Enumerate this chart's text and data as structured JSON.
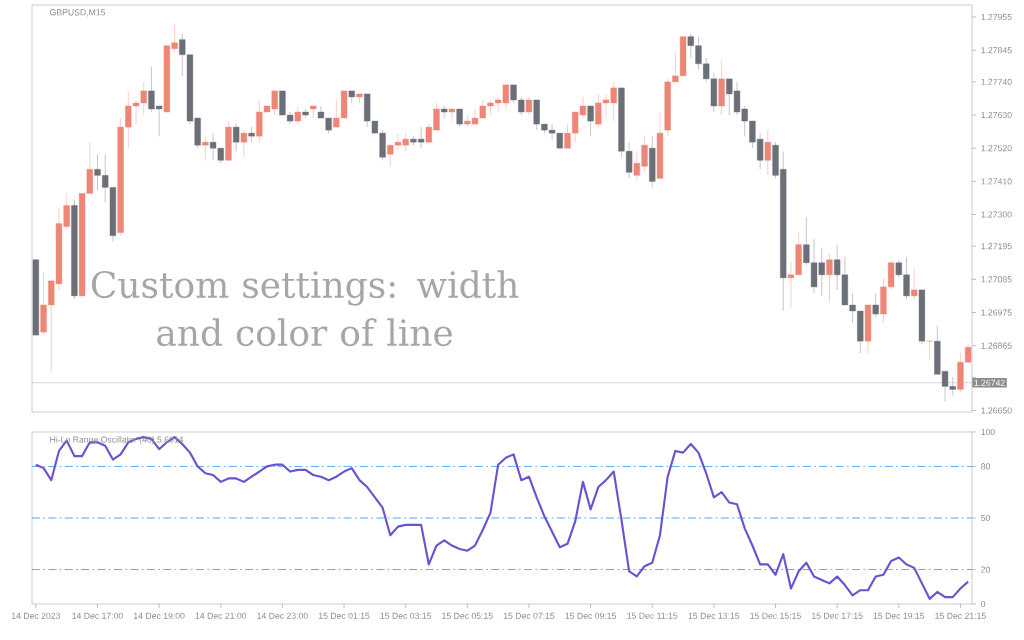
{
  "chart_data": [
    {
      "type": "candlestick",
      "title": "GBPUSD,M15",
      "annotations": [
        "Custom settings: width and color of line"
      ],
      "tick_labels": "y",
      "categories": [
        null,
        null,
        null,
        null,
        null,
        null,
        null,
        null,
        null,
        null,
        null,
        null,
        null,
        null,
        null,
        null,
        null,
        null,
        null,
        null,
        null,
        null,
        null,
        null,
        null,
        null,
        null,
        null,
        null,
        null,
        null,
        null,
        null,
        null,
        null,
        null,
        null,
        null,
        null,
        null,
        null,
        null,
        null,
        null,
        null,
        null,
        null,
        null,
        null,
        null,
        null,
        null,
        null,
        null,
        null,
        null,
        null,
        null,
        null,
        null,
        null,
        null,
        null,
        null,
        null,
        null,
        null,
        null,
        null,
        null,
        null,
        null,
        null,
        null,
        null,
        null,
        null,
        null,
        null,
        null,
        null,
        null,
        null,
        null,
        null,
        null,
        null,
        null,
        null,
        null,
        null,
        null,
        null,
        null,
        null,
        null,
        null,
        null,
        null,
        null,
        null,
        null,
        null,
        null,
        null,
        null,
        null,
        null,
        null,
        null,
        null,
        null,
        null,
        null,
        null,
        null,
        null,
        null,
        null,
        null,
        null,
        null
      ],
      "ohlc": [
        [
          1.2715,
          1.2715,
          1.269,
          1.269
        ],
        [
          1.2691,
          1.2711,
          1.269,
          1.27
        ],
        [
          1.27,
          1.2708,
          1.2678,
          1.2708
        ],
        [
          1.2707,
          1.2732,
          1.2705,
          1.2727
        ],
        [
          1.2726,
          1.2737,
          1.2725,
          1.2733
        ],
        [
          1.2733,
          1.2735,
          1.2702,
          1.2703
        ],
        [
          1.2703,
          1.2737,
          1.2703,
          1.2737
        ],
        [
          1.2737,
          1.2754,
          1.2737,
          1.2745
        ],
        [
          1.2745,
          1.275,
          1.2738,
          1.2743
        ],
        [
          1.2743,
          1.275,
          1.2734,
          1.2739
        ],
        [
          1.2739,
          1.2739,
          1.2721,
          1.2723
        ],
        [
          1.2724,
          1.2762,
          1.2723,
          1.2759
        ],
        [
          1.2759,
          1.2771,
          1.2752,
          1.2766
        ],
        [
          1.2766,
          1.2768,
          1.276,
          1.2767
        ],
        [
          1.2767,
          1.2774,
          1.2763,
          1.2771
        ],
        [
          1.2771,
          1.2779,
          1.2764,
          1.2765
        ],
        [
          1.2766,
          1.2766,
          1.2756,
          1.2765
        ],
        [
          1.2764,
          1.2786,
          1.2764,
          1.2786
        ],
        [
          1.2785,
          1.2793,
          1.2784,
          1.2787
        ],
        [
          1.2788,
          1.279,
          1.2776,
          1.2783
        ],
        [
          1.2783,
          1.2783,
          1.276,
          1.2761
        ],
        [
          1.2762,
          1.2762,
          1.2752,
          1.2753
        ],
        [
          1.2753,
          1.2756,
          1.2748,
          1.2754
        ],
        [
          1.2754,
          1.2757,
          1.2748,
          1.2752
        ],
        [
          1.2752,
          1.2752,
          1.2747,
          1.2748
        ],
        [
          1.2748,
          1.2761,
          1.2748,
          1.2759
        ],
        [
          1.2759,
          1.276,
          1.2751,
          1.2754
        ],
        [
          1.2754,
          1.2758,
          1.2749,
          1.2757
        ],
        [
          1.2757,
          1.2759,
          1.2754,
          1.2756
        ],
        [
          1.2756,
          1.2768,
          1.2754,
          1.2764
        ],
        [
          1.2764,
          1.2766,
          1.2764,
          1.2766
        ],
        [
          1.2765,
          1.2771,
          1.2763,
          1.2771
        ],
        [
          1.2771,
          1.2771,
          1.2763,
          1.2763
        ],
        [
          1.2763,
          1.2764,
          1.276,
          1.2761
        ],
        [
          1.2761,
          1.2766,
          1.276,
          1.2764
        ],
        [
          1.2764,
          1.2765,
          1.2762,
          1.2763
        ],
        [
          1.2765,
          1.2766,
          1.2762,
          1.2766
        ],
        [
          1.2764,
          1.2766,
          1.2762,
          1.2762
        ],
        [
          1.2762,
          1.2762,
          1.2757,
          1.2758
        ],
        [
          1.2759,
          1.2768,
          1.2759,
          1.2762
        ],
        [
          1.2762,
          1.2771,
          1.2762,
          1.2771
        ],
        [
          1.2771,
          1.2771,
          1.2767,
          1.2769
        ],
        [
          1.2769,
          1.277,
          1.2767,
          1.277
        ],
        [
          1.277,
          1.277,
          1.2759,
          1.2761
        ],
        [
          1.2761,
          1.2761,
          1.2757,
          1.2757
        ],
        [
          1.2757,
          1.2758,
          1.2748,
          1.2749
        ],
        [
          1.275,
          1.2753,
          1.2746,
          1.2753
        ],
        [
          1.2753,
          1.2757,
          1.2751,
          1.2754
        ],
        [
          1.2753,
          1.2757,
          1.2751,
          1.2755
        ],
        [
          1.2755,
          1.2756,
          1.2753,
          1.2754
        ],
        [
          1.2755,
          1.2759,
          1.2752,
          1.2754
        ],
        [
          1.2754,
          1.276,
          1.2754,
          1.2759
        ],
        [
          1.2758,
          1.2767,
          1.2758,
          1.2765
        ],
        [
          1.2765,
          1.2766,
          1.2762,
          1.2764
        ],
        [
          1.2764,
          1.2765,
          1.2761,
          1.2765
        ],
        [
          1.2765,
          1.2765,
          1.2759,
          1.276
        ],
        [
          1.276,
          1.2763,
          1.2759,
          1.2761
        ],
        [
          1.276,
          1.2765,
          1.276,
          1.2762
        ],
        [
          1.2762,
          1.2768,
          1.2762,
          1.2766
        ],
        [
          1.2766,
          1.2768,
          1.2763,
          1.2767
        ],
        [
          1.2767,
          1.2769,
          1.2764,
          1.2768
        ],
        [
          1.2767,
          1.2773,
          1.2765,
          1.2773
        ],
        [
          1.2773,
          1.2773,
          1.2767,
          1.2768
        ],
        [
          1.2768,
          1.2769,
          1.2763,
          1.2764
        ],
        [
          1.2764,
          1.2769,
          1.2763,
          1.2768
        ],
        [
          1.2768,
          1.2768,
          1.2758,
          1.276
        ],
        [
          1.276,
          1.276,
          1.2757,
          1.2758
        ],
        [
          1.2758,
          1.276,
          1.2755,
          1.2757
        ],
        [
          1.2757,
          1.2757,
          1.2752,
          1.2752
        ],
        [
          1.2752,
          1.276,
          1.2752,
          1.2757
        ],
        [
          1.2757,
          1.2764,
          1.2754,
          1.2764
        ],
        [
          1.2763,
          1.2769,
          1.2762,
          1.2766
        ],
        [
          1.2766,
          1.2766,
          1.2756,
          1.2761
        ],
        [
          1.276,
          1.277,
          1.2759,
          1.2767
        ],
        [
          1.2767,
          1.277,
          1.2762,
          1.2768
        ],
        [
          1.2767,
          1.2774,
          1.2761,
          1.2772
        ],
        [
          1.2772,
          1.2772,
          1.2749,
          1.2751
        ],
        [
          1.2751,
          1.2754,
          1.2742,
          1.2744
        ],
        [
          1.2743,
          1.2751,
          1.2741,
          1.2747
        ],
        [
          1.2746,
          1.2756,
          1.2744,
          1.2753
        ],
        [
          1.2752,
          1.2756,
          1.2739,
          1.2741
        ],
        [
          1.2742,
          1.2764,
          1.2742,
          1.2757
        ],
        [
          1.2758,
          1.2775,
          1.2756,
          1.2774
        ],
        [
          1.2774,
          1.2784,
          1.2774,
          1.2776
        ],
        [
          1.2776,
          1.2789,
          1.2776,
          1.2789
        ],
        [
          1.2789,
          1.279,
          1.2782,
          1.2786
        ],
        [
          1.2786,
          1.2789,
          1.2778,
          1.278
        ],
        [
          1.278,
          1.2782,
          1.2774,
          1.2775
        ],
        [
          1.2775,
          1.2777,
          1.2764,
          1.2766
        ],
        [
          1.2766,
          1.2781,
          1.2763,
          1.2775
        ],
        [
          1.2775,
          1.2775,
          1.2763,
          1.277
        ],
        [
          1.2771,
          1.2774,
          1.2763,
          1.2764
        ],
        [
          1.2765,
          1.2766,
          1.2756,
          1.2761
        ],
        [
          1.2761,
          1.2761,
          1.2752,
          1.2754
        ],
        [
          1.2755,
          1.2757,
          1.2745,
          1.2748
        ],
        [
          1.2748,
          1.2758,
          1.2743,
          1.2754
        ],
        [
          1.2753,
          1.2754,
          1.2742,
          1.2743
        ],
        [
          1.2745,
          1.2751,
          1.2698,
          1.2709
        ],
        [
          1.2709,
          1.2714,
          1.2699,
          1.271
        ],
        [
          1.271,
          1.2724,
          1.271,
          1.272
        ],
        [
          1.272,
          1.2729,
          1.2713,
          1.2714
        ],
        [
          1.2714,
          1.2722,
          1.2704,
          1.2706
        ],
        [
          1.2714,
          1.2719,
          1.2703,
          1.271
        ],
        [
          1.271,
          1.2717,
          1.2701,
          1.2715
        ],
        [
          1.2715,
          1.272,
          1.2705,
          1.271
        ],
        [
          1.271,
          1.2716,
          1.27,
          1.27
        ],
        [
          1.27,
          1.2704,
          1.2694,
          1.2698
        ],
        [
          1.2698,
          1.2698,
          1.2684,
          1.2688
        ],
        [
          1.2688,
          1.27,
          1.2684,
          1.27
        ],
        [
          1.27,
          1.2704,
          1.2696,
          1.2697
        ],
        [
          1.2697,
          1.2709,
          1.2694,
          1.2706
        ],
        [
          1.2706,
          1.2715,
          1.2705,
          1.2714
        ],
        [
          1.2714,
          1.2715,
          1.2709,
          1.271
        ],
        [
          1.271,
          1.2716,
          1.2702,
          1.2703
        ],
        [
          1.2703,
          1.2712,
          1.2702,
          1.2705
        ],
        [
          1.2705,
          1.2705,
          1.2687,
          1.2688
        ],
        [
          1.2688,
          1.2688,
          1.2682,
          1.2688
        ],
        [
          1.2688,
          1.2693,
          1.2677,
          1.2677
        ],
        [
          1.2678,
          1.2678,
          1.2668,
          1.2673
        ],
        [
          1.2673,
          1.2676,
          1.267,
          1.2672
        ],
        [
          1.2672,
          1.2684,
          1.2671,
          1.2681
        ],
        [
          1.2681,
          1.2687,
          1.2681,
          1.2686
        ]
      ],
      "colors": [
        "#6b7078",
        "#ee8677",
        "#ee8677",
        "#ee8677",
        "#ee8677",
        "#6b7078",
        "#ee8677",
        "#ee8677",
        "#6b7078",
        "#6b7078",
        "#6b7078",
        "#ee8677",
        "#ee8677",
        "#ee8677",
        "#ee8677",
        "#6b7078",
        "#6b7078",
        "#ee8677",
        "#ee8677",
        "#6b7078",
        "#6b7078",
        "#6b7078",
        "#ee8677",
        "#6b7078",
        "#6b7078",
        "#ee8677",
        "#6b7078",
        "#ee8677",
        "#6b7078",
        "#ee8677",
        "#ee8677",
        "#ee8677",
        "#6b7078",
        "#6b7078",
        "#ee8677",
        "#6b7078",
        "#ee8677",
        "#6b7078",
        "#6b7078",
        "#ee8677",
        "#ee8677",
        "#6b7078",
        "#ee8677",
        "#6b7078",
        "#6b7078",
        "#6b7078",
        "#ee8677",
        "#ee8677",
        "#ee8677",
        "#6b7078",
        "#6b7078",
        "#ee8677",
        "#ee8677",
        "#6b7078",
        "#ee8677",
        "#6b7078",
        "#ee8677",
        "#ee8677",
        "#ee8677",
        "#ee8677",
        "#ee8677",
        "#ee8677",
        "#6b7078",
        "#6b7078",
        "#ee8677",
        "#6b7078",
        "#6b7078",
        "#6b7078",
        "#6b7078",
        "#ee8677",
        "#ee8677",
        "#ee8677",
        "#6b7078",
        "#ee8677",
        "#ee8677",
        "#ee8677",
        "#6b7078",
        "#6b7078",
        "#ee8677",
        "#ee8677",
        "#6b7078",
        "#ee8677",
        "#ee8677",
        "#ee8677",
        "#ee8677",
        "#6b7078",
        "#6b7078",
        "#6b7078",
        "#6b7078",
        "#ee8677",
        "#6b7078",
        "#6b7078",
        "#6b7078",
        "#6b7078",
        "#6b7078",
        "#ee8677",
        "#6b7078",
        "#6b7078",
        "#ee8677",
        "#ee8677",
        "#6b7078",
        "#6b7078",
        "#6b7078",
        "#ee8677",
        "#6b7078",
        "#6b7078",
        "#6b7078",
        "#6b7078",
        "#ee8677",
        "#6b7078",
        "#ee8677",
        "#ee8677",
        "#6b7078",
        "#6b7078",
        "#ee8677",
        "#6b7078",
        "#ee8677",
        "#6b7078",
        "#6b7078",
        "#6b7078",
        "#ee8677",
        "#ee8677"
      ],
      "ylim": [
        1.26645,
        1.27995
      ],
      "yticks": [
        {
          "value": 1.2665,
          "label": "1.26650"
        },
        {
          "value": 1.2676,
          "label": null
        },
        1.26865,
        1.26975,
        1.27085,
        1.27195,
        {
          "value": 1.273,
          "label": "1.27300"
        },
        {
          "value": 1.2741,
          "label": "1.27410"
        },
        {
          "value": 1.2752,
          "label": "1.27520"
        },
        {
          "value": 1.2763,
          "label": "1.27630"
        },
        {
          "value": 1.2774,
          "label": "1.27740"
        },
        1.27845,
        1.27955
      ],
      "ref_lines": [
        {
          "axis": "y",
          "value": 1.26742,
          "label": "1.26742",
          "color": "#c8c8c8"
        }
      ]
    },
    {
      "type": "line",
      "title": "Hi-Lo Range Oscillator (40) 5.6914",
      "categories": [
        "14 Dec 2023",
        null,
        null,
        null,
        null,
        null,
        null,
        null,
        "14 Dec 17:00",
        null,
        null,
        null,
        null,
        null,
        null,
        null,
        "14 Dec 19:00",
        null,
        null,
        null,
        null,
        null,
        null,
        null,
        "14 Dec 21:00",
        null,
        null,
        null,
        null,
        null,
        null,
        null,
        "14 Dec 23:00",
        null,
        null,
        null,
        null,
        null,
        null,
        null,
        "15 Dec 01:15",
        null,
        null,
        null,
        null,
        null,
        null,
        null,
        "15 Dec 03:15",
        null,
        null,
        null,
        null,
        null,
        null,
        null,
        "15 Dec 05:15",
        null,
        null,
        null,
        null,
        null,
        null,
        null,
        "15 Dec 07:15",
        null,
        null,
        null,
        null,
        null,
        null,
        null,
        "15 Dec 09:15",
        null,
        null,
        null,
        null,
        null,
        null,
        null,
        "15 Dec 11:15",
        null,
        null,
        null,
        null,
        null,
        null,
        null,
        "15 Dec 13:15",
        null,
        null,
        null,
        null,
        null,
        null,
        null,
        "15 Dec 15:15",
        null,
        null,
        null,
        null,
        null,
        null,
        null,
        "15 Dec 17:15",
        null,
        null,
        null,
        null,
        null,
        null,
        null,
        "15 Dec 19:15",
        null,
        null,
        null,
        null,
        null,
        null,
        null,
        "15 Dec 21:15",
        null
      ],
      "series": [
        {
          "color": "#6a52d0",
          "values": [
            81,
            79,
            72,
            89,
            95,
            86,
            86,
            94,
            94,
            92,
            84,
            87,
            94,
            96,
            97,
            96,
            90,
            94,
            97,
            93,
            88,
            80,
            76,
            75,
            71,
            73,
            73,
            71,
            74,
            77,
            80,
            81,
            81,
            77,
            78,
            78,
            75,
            74,
            72,
            74,
            77,
            79,
            72,
            68,
            62,
            56,
            40,
            45,
            46,
            46,
            46,
            23,
            34,
            37,
            34,
            32,
            31,
            34,
            43,
            53,
            81,
            85,
            87,
            72,
            74,
            62,
            51,
            42,
            33,
            35,
            48,
            71,
            55,
            68,
            72,
            77,
            49,
            19,
            16,
            22,
            24,
            40,
            74,
            89,
            88,
            93,
            88,
            76,
            62,
            65,
            59,
            58,
            44,
            34,
            23,
            23,
            17,
            29,
            9,
            19,
            24,
            16,
            14,
            12,
            16,
            11,
            5,
            8,
            8,
            16,
            17,
            25,
            27,
            23,
            21,
            12,
            3,
            7,
            4,
            4,
            9,
            13
          ]
        }
      ],
      "ylim": [
        0,
        100
      ],
      "yticks": [
        0,
        20,
        50,
        80,
        100
      ],
      "ref_lines": [
        {
          "axis": "y",
          "value": 80,
          "color": "#1e90ff",
          "line_style": "dashdot"
        },
        {
          "axis": "y",
          "value": 50,
          "color": "#1e90ff",
          "line_style": "dashdot"
        },
        {
          "axis": "y",
          "value": 20,
          "color": "#1e90ff",
          "line_style": "dashdot"
        }
      ]
    }
  ]
}
